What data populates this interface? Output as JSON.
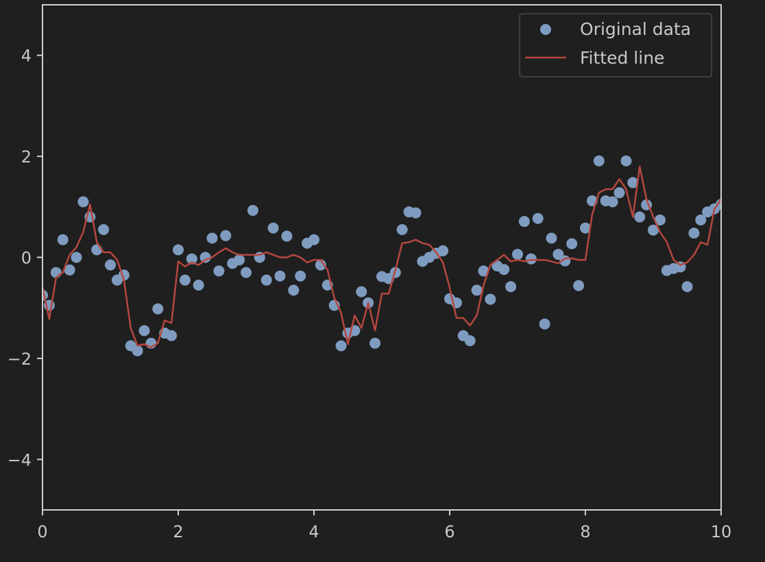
{
  "chart_data": {
    "type": "scatter",
    "title": "",
    "xlabel": "",
    "ylabel": "",
    "xlim": [
      0,
      10
    ],
    "ylim": [
      -5,
      5
    ],
    "grid": false,
    "legend_position": "top-right",
    "colors": {
      "background": "#1f1f1f",
      "axes": "#d0d0d0",
      "text": "#c8c8c8",
      "points": "#7f9cc0",
      "line": "#b5473f"
    },
    "x_ticks": [
      {
        "value": 0,
        "label": "0"
      },
      {
        "value": 2,
        "label": "2"
      },
      {
        "value": 4,
        "label": "4"
      },
      {
        "value": 6,
        "label": "6"
      },
      {
        "value": 8,
        "label": "8"
      },
      {
        "value": 10,
        "label": "10"
      }
    ],
    "y_ticks": [
      {
        "value": -4,
        "label": "−4"
      },
      {
        "value": -2,
        "label": "−2"
      },
      {
        "value": 0,
        "label": "0"
      },
      {
        "value": 2,
        "label": "2"
      },
      {
        "value": 4,
        "label": "4"
      }
    ],
    "series": [
      {
        "name": "Original data",
        "kind": "scatter",
        "x": [
          0.0,
          0.1,
          0.2,
          0.3,
          0.4,
          0.5,
          0.6,
          0.7,
          0.8,
          0.9,
          1.0,
          1.1,
          1.2,
          1.3,
          1.4,
          1.5,
          1.6,
          1.7,
          1.8,
          1.9,
          2.0,
          2.1,
          2.2,
          2.3,
          2.4,
          2.5,
          2.6,
          2.7,
          2.8,
          2.9,
          3.0,
          3.1,
          3.2,
          3.3,
          3.4,
          3.5,
          3.6,
          3.7,
          3.8,
          3.9,
          4.0,
          4.1,
          4.2,
          4.3,
          4.4,
          4.5,
          4.6,
          4.7,
          4.8,
          4.9,
          5.0,
          5.1,
          5.2,
          5.3,
          5.4,
          5.5,
          5.6,
          5.7,
          5.8,
          5.9,
          6.0,
          6.1,
          6.2,
          6.3,
          6.4,
          6.5,
          6.6,
          6.7,
          6.8,
          6.9,
          7.0,
          7.1,
          7.2,
          7.3,
          7.4,
          7.5,
          7.6,
          7.7,
          7.8,
          7.9,
          8.0,
          8.1,
          8.2,
          8.3,
          8.4,
          8.5,
          8.6,
          8.7,
          8.8,
          8.9,
          9.0,
          9.1,
          9.2,
          9.3,
          9.4,
          9.5,
          9.6,
          9.7,
          9.8,
          9.9,
          10.0
        ],
        "y": [
          -0.75,
          -0.95,
          -0.3,
          0.35,
          -0.25,
          0.0,
          1.1,
          0.8,
          0.15,
          0.55,
          -0.15,
          -0.45,
          -0.35,
          -1.75,
          -1.85,
          -1.45,
          -1.7,
          -1.02,
          -1.5,
          -1.55,
          0.15,
          -0.45,
          -0.03,
          -0.55,
          0.0,
          0.38,
          -0.27,
          0.43,
          -0.12,
          -0.05,
          -0.3,
          0.93,
          0.0,
          -0.45,
          0.58,
          -0.37,
          0.42,
          -0.65,
          -0.37,
          0.28,
          0.35,
          -0.15,
          -0.55,
          -0.95,
          -1.75,
          -1.5,
          -1.45,
          -0.68,
          -0.9,
          -1.7,
          -0.38,
          -0.42,
          -0.3,
          0.55,
          0.9,
          0.88,
          -0.08,
          0.0,
          0.08,
          0.13,
          -0.82,
          -0.9,
          -1.55,
          -1.65,
          -0.65,
          -0.27,
          -0.83,
          -0.17,
          -0.24,
          -0.58,
          0.06,
          0.71,
          -0.03,
          0.77,
          -1.32,
          0.38,
          0.06,
          -0.07,
          0.27,
          -0.56,
          0.58,
          1.12,
          1.91,
          1.12,
          1.1,
          1.28,
          1.91,
          1.48,
          0.8,
          1.04,
          0.54,
          0.74,
          -0.26,
          -0.22,
          -0.19,
          -0.58,
          0.48,
          0.74,
          0.9,
          0.96,
          1.05
        ]
      },
      {
        "name": "Fitted line",
        "kind": "line",
        "x": [
          0.0,
          0.1,
          0.2,
          0.3,
          0.4,
          0.5,
          0.6,
          0.7,
          0.8,
          0.9,
          1.0,
          1.1,
          1.2,
          1.3,
          1.4,
          1.5,
          1.6,
          1.7,
          1.8,
          1.9,
          2.0,
          2.1,
          2.2,
          2.3,
          2.4,
          2.5,
          2.6,
          2.7,
          2.8,
          2.9,
          3.0,
          3.1,
          3.2,
          3.3,
          3.4,
          3.5,
          3.6,
          3.7,
          3.8,
          3.9,
          4.0,
          4.1,
          4.2,
          4.3,
          4.4,
          4.5,
          4.6,
          4.7,
          4.8,
          4.9,
          5.0,
          5.1,
          5.2,
          5.3,
          5.4,
          5.5,
          5.6,
          5.7,
          5.8,
          5.9,
          6.0,
          6.1,
          6.2,
          6.3,
          6.4,
          6.5,
          6.6,
          6.7,
          6.8,
          6.9,
          7.0,
          7.1,
          7.2,
          7.3,
          7.4,
          7.5,
          7.6,
          7.7,
          7.8,
          7.9,
          8.0,
          8.1,
          8.2,
          8.3,
          8.4,
          8.5,
          8.6,
          8.7,
          8.8,
          8.9,
          9.0,
          9.1,
          9.2,
          9.3,
          9.4,
          9.5,
          9.6,
          9.7,
          9.8,
          9.9,
          10.0
        ],
        "y": [
          -0.6,
          -1.22,
          -0.4,
          -0.3,
          0.05,
          0.2,
          0.5,
          1.05,
          0.3,
          0.1,
          0.1,
          -0.05,
          -0.45,
          -1.4,
          -1.75,
          -1.72,
          -1.78,
          -1.7,
          -1.25,
          -1.3,
          -0.08,
          -0.18,
          -0.1,
          -0.15,
          -0.05,
          0.0,
          0.1,
          0.18,
          0.1,
          0.05,
          0.05,
          0.05,
          0.05,
          0.1,
          0.05,
          0.0,
          0.0,
          0.05,
          0.0,
          -0.1,
          -0.05,
          -0.05,
          -0.25,
          -0.8,
          -1.1,
          -1.72,
          -1.15,
          -1.4,
          -0.9,
          -1.45,
          -0.72,
          -0.72,
          -0.25,
          0.28,
          0.3,
          0.35,
          0.28,
          0.25,
          0.1,
          -0.1,
          -0.6,
          -1.2,
          -1.2,
          -1.35,
          -1.15,
          -0.55,
          -0.15,
          -0.05,
          0.05,
          -0.08,
          -0.05,
          -0.08,
          -0.05,
          -0.05,
          -0.05,
          -0.08,
          -0.12,
          -0.02,
          -0.02,
          -0.05,
          -0.05,
          0.85,
          1.28,
          1.35,
          1.35,
          1.55,
          1.35,
          0.8,
          1.8,
          1.15,
          0.8,
          0.5,
          0.3,
          -0.05,
          -0.15,
          -0.1,
          0.05,
          0.3,
          0.25,
          0.95,
          1.15
        ]
      }
    ],
    "legend": [
      {
        "label": "Original data",
        "marker": "circle"
      },
      {
        "label": "Fitted line",
        "marker": "line"
      }
    ]
  }
}
